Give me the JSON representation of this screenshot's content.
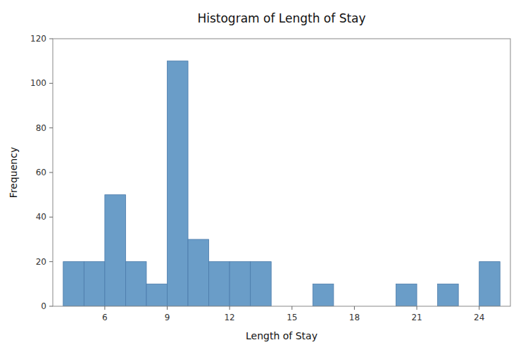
{
  "chart_data": {
    "type": "bar",
    "title": "Histogram of Length of Stay",
    "xlabel": "Length of Stay",
    "ylabel": "Frequency",
    "x": [
      4,
      5,
      6,
      7,
      8,
      9,
      10,
      11,
      12,
      13,
      16,
      20,
      22,
      24
    ],
    "values": [
      20,
      20,
      50,
      20,
      10,
      110,
      30,
      20,
      20,
      20,
      10,
      10,
      10,
      20
    ],
    "color": "#6a9dc8",
    "xlim": [
      3.5,
      25.5
    ],
    "xticks": [
      6,
      9,
      12,
      15,
      18,
      21,
      24
    ],
    "ylim": [
      0,
      120
    ],
    "yticks": [
      0,
      20,
      40,
      60,
      80,
      100,
      120
    ],
    "grid": false
  }
}
